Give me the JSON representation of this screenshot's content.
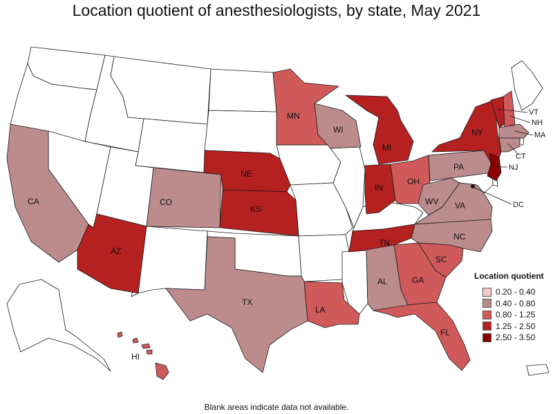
{
  "title": "Location quotient of anesthesiologists, by state, May 2021",
  "footnote": "Blank areas indicate data not available.",
  "legend": {
    "title": "Location quotient",
    "items": [
      {
        "label": "0.20 - 0.40",
        "color": "#f8c9c9"
      },
      {
        "label": "0.40 - 0.80",
        "color": "#bc8c8c"
      },
      {
        "label": "0.80 - 1.25",
        "color": "#d05a5a"
      },
      {
        "label": "1.25 - 2.50",
        "color": "#b52020"
      },
      {
        "label": "2.50 - 3.50",
        "color": "#8b0000"
      }
    ]
  },
  "states": [
    {
      "abbr": "CA",
      "category": "0.40 - 0.80"
    },
    {
      "abbr": "AZ",
      "category": "1.25 - 2.50"
    },
    {
      "abbr": "CO",
      "category": "0.40 - 0.80"
    },
    {
      "abbr": "NE",
      "category": "1.25 - 2.50"
    },
    {
      "abbr": "KS",
      "category": "1.25 - 2.50"
    },
    {
      "abbr": "TX",
      "category": "0.40 - 0.80"
    },
    {
      "abbr": "MN",
      "category": "0.80 - 1.25"
    },
    {
      "abbr": "WI",
      "category": "0.40 - 0.80"
    },
    {
      "abbr": "MI",
      "category": "1.25 - 2.50"
    },
    {
      "abbr": "IN",
      "category": "1.25 - 2.50"
    },
    {
      "abbr": "OH",
      "category": "0.80 - 1.25"
    },
    {
      "abbr": "PA",
      "category": "0.40 - 0.80"
    },
    {
      "abbr": "NY",
      "category": "1.25 - 2.50"
    },
    {
      "abbr": "VT",
      "category": "1.25 - 2.50"
    },
    {
      "abbr": "NH",
      "category": "0.80 - 1.25"
    },
    {
      "abbr": "MA",
      "category": "0.40 - 0.80"
    },
    {
      "abbr": "CT",
      "category": "0.40 - 0.80"
    },
    {
      "abbr": "NJ",
      "category": "2.50 - 3.50"
    },
    {
      "abbr": "DC",
      "category": "2.50 - 3.50"
    },
    {
      "abbr": "WV",
      "category": "0.40 - 0.80"
    },
    {
      "abbr": "VA",
      "category": "0.40 - 0.80"
    },
    {
      "abbr": "NC",
      "category": "0.40 - 0.80"
    },
    {
      "abbr": "TN",
      "category": "1.25 - 2.50"
    },
    {
      "abbr": "SC",
      "category": "0.80 - 1.25"
    },
    {
      "abbr": "GA",
      "category": "0.80 - 1.25"
    },
    {
      "abbr": "AL",
      "category": "0.40 - 0.80"
    },
    {
      "abbr": "FL",
      "category": "0.80 - 1.25"
    },
    {
      "abbr": "LA",
      "category": "0.80 - 1.25"
    },
    {
      "abbr": "HI",
      "category": "0.80 - 1.25"
    }
  ],
  "blank_states": [
    "WA",
    "OR",
    "ID",
    "MT",
    "WY",
    "NV",
    "UT",
    "NM",
    "ND",
    "SD",
    "IA",
    "MO",
    "IL",
    "OK",
    "AR",
    "MS",
    "KY",
    "ME",
    "RI",
    "DE",
    "MD",
    "AK",
    "PR"
  ]
}
